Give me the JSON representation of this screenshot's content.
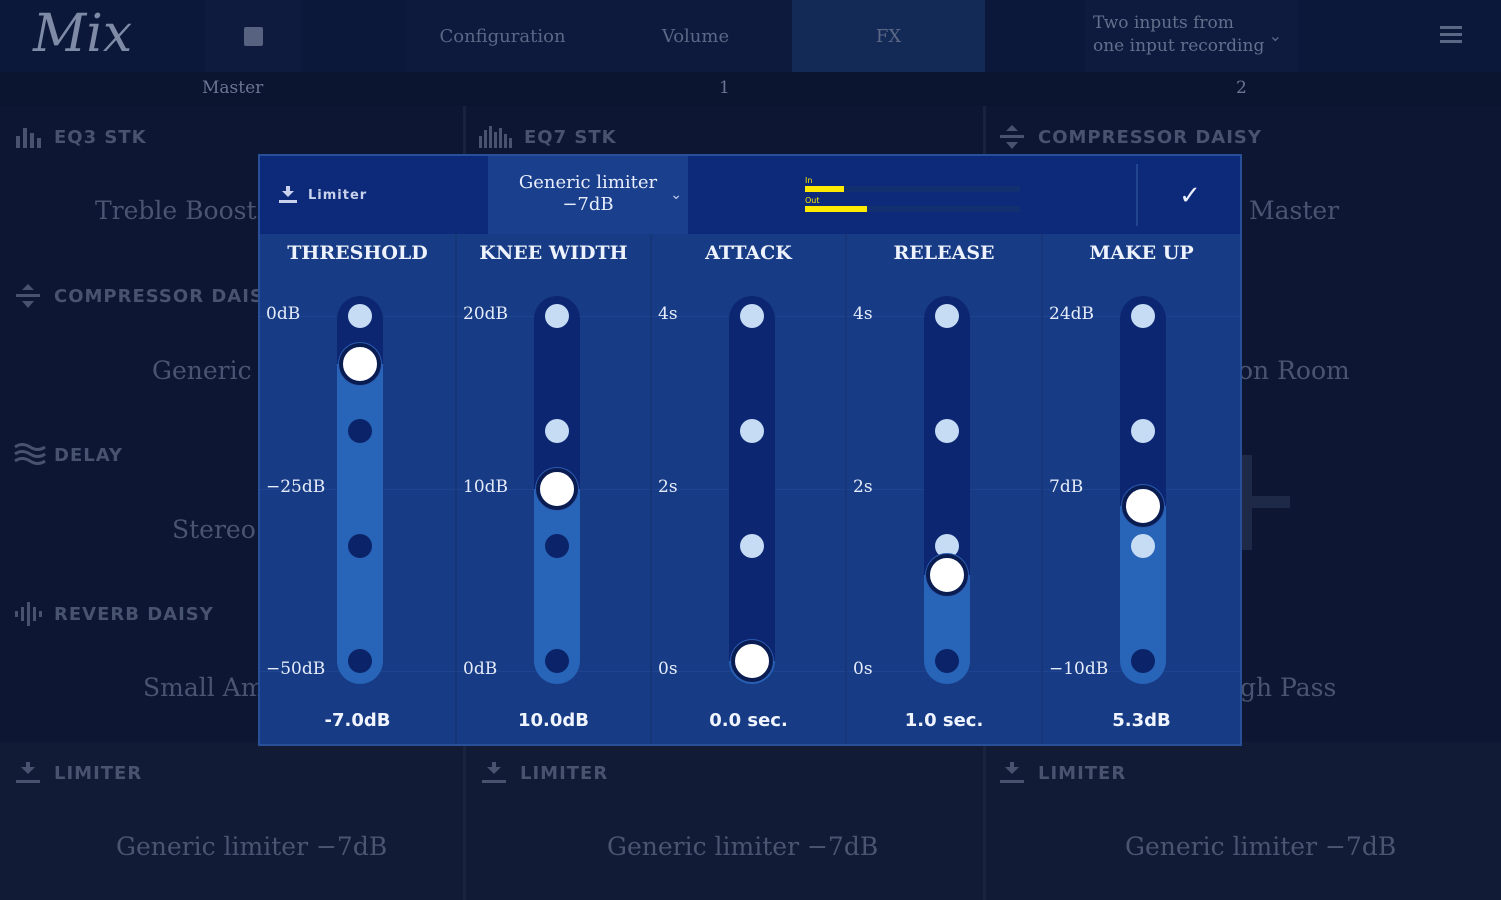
{
  "app": {
    "logo_text": "Mix"
  },
  "topbar": {
    "stop_icon": "stop-icon",
    "tabs": [
      {
        "label": "Configuration",
        "active": false
      },
      {
        "label": "Volume",
        "active": false
      },
      {
        "label": "FX",
        "active": true
      }
    ],
    "preset_line1": "Two inputs from",
    "preset_line2": "one input recording",
    "preset_chevron": "⌄",
    "menu_icon": "hamburger-menu-icon"
  },
  "channels": {
    "master": "Master",
    "ch1": "1",
    "ch2": "2"
  },
  "master_column": {
    "effects": [
      {
        "name": "EQ3 STK",
        "value": "Treble Boost B"
      },
      {
        "name": "COMPRESSOR DAISY",
        "value": "Generic S"
      },
      {
        "name": "DELAY",
        "value": "Stereo D"
      },
      {
        "name": "REVERB DAISY",
        "value": "Small Aml"
      },
      {
        "name": "LIMITER",
        "value": "Generic limiter −7dB"
      }
    ]
  },
  "ch1_column": {
    "effects": [
      {
        "name": "EQ7 STK",
        "value": ""
      },
      {
        "name": "LIMITER",
        "value": "Generic limiter −7dB"
      }
    ]
  },
  "ch2_column": {
    "effects": [
      {
        "name": "COMPRESSOR DAISY",
        "value": "Master"
      },
      {
        "name": "",
        "value": "on Room"
      },
      {
        "name": "",
        "value": "gh Pass"
      },
      {
        "name": "LIMITER",
        "value": "Generic limiter −7dB"
      }
    ]
  },
  "dialog": {
    "title": "Limiter",
    "preset_line1": "Generic limiter",
    "preset_line2": "−7dB",
    "preset_chevron": "⌄",
    "meter_in_label": "In",
    "meter_out_label": "Out",
    "meter_in_level": 0.18,
    "meter_out_level": 0.29,
    "meter_color": "#ffea00",
    "confirm_glyph": "✓",
    "params": [
      {
        "title": "THRESHOLD",
        "ticks": [
          "0dB",
          "−25dB",
          "−50dB"
        ],
        "value": "-7.0dB",
        "level": 0.86
      },
      {
        "title": "KNEE WIDTH",
        "ticks": [
          "20dB",
          "10dB",
          "0dB"
        ],
        "value": "10.0dB",
        "level": 0.5
      },
      {
        "title": "ATTACK",
        "ticks": [
          "4s",
          "2s",
          "0s"
        ],
        "value": "0.0 sec.",
        "level": 0.0
      },
      {
        "title": "RELEASE",
        "ticks": [
          "4s",
          "2s",
          "0s"
        ],
        "value": "1.0 sec.",
        "level": 0.25
      },
      {
        "title": "MAKE UP",
        "ticks": [
          "24dB",
          "7dB",
          "−10dB"
        ],
        "value": "5.3dB",
        "level": 0.45
      }
    ]
  }
}
